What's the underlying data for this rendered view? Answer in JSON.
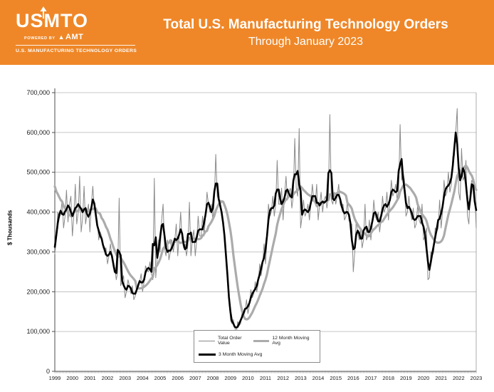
{
  "header": {
    "background_color": "#EF8728",
    "logo": {
      "name": "USMTO",
      "powered_by": "POWERED BY",
      "amt": "AMT",
      "tagline": "U.S. MANUFACTURING TECHNOLOGY ORDERS"
    },
    "title": "Total U.S. Manufacturing Technology Orders",
    "subtitle": "Through January 2023"
  },
  "chart_data": {
    "type": "line",
    "title": "Total U.S. Manufacturing Technology Orders",
    "subtitle": "Through January 2023",
    "ylabel": "$ Thousands",
    "values_unit": "$ thousands, monthly, Jan 1999 - Jan 2023",
    "ylim": [
      0,
      700000
    ],
    "ytick_step": 100000,
    "grid": "horizontal",
    "legend_position": "bottom-center-inside",
    "year_labels": [
      "1999",
      "2000",
      "2001",
      "2002",
      "2003",
      "2004",
      "2005",
      "2006",
      "2007",
      "2008",
      "2009",
      "2010",
      "2011",
      "2012",
      "2013",
      "2014",
      "2015",
      "2016",
      "2017",
      "2018",
      "2019",
      "2020",
      "2021",
      "2022",
      "2023"
    ],
    "series": [
      {
        "name": "Total Order Value",
        "color": "#8a8a8a",
        "width": 1,
        "role": "monthly-values",
        "values": [
          295000,
          330000,
          400000,
          385000,
          395000,
          430000,
          360000,
          390000,
          455000,
          375000,
          420000,
          440000,
          340000,
          390000,
          470000,
          370000,
          400000,
          490000,
          350000,
          385000,
          465000,
          370000,
          395000,
          420000,
          350000,
          420000,
          465000,
          410000,
          390000,
          380000,
          330000,
          350000,
          340000,
          310000,
          300000,
          310000,
          270000,
          290000,
          320000,
          290000,
          260000,
          260000,
          230000,
          250000,
          435000,
          215000,
          225000,
          240000,
          185000,
          200000,
          230000,
          215000,
          195000,
          215000,
          180000,
          190000,
          215000,
          210000,
          225000,
          245000,
          200000,
          225000,
          265000,
          255000,
          250000,
          275000,
          245000,
          230000,
          485000,
          235000,
          290000,
          330000,
          300000,
          380000,
          420000,
          310000,
          290000,
          330000,
          280000,
          300000,
          330000,
          300000,
          330000,
          370000,
          290000,
          340000,
          400000,
          330000,
          310000,
          320000,
          290000,
          320000,
          425000,
          290000,
          330000,
          355000,
          290000,
          330000,
          390000,
          340000,
          340000,
          390000,
          340000,
          390000,
          450000,
          420000,
          400000,
          420000,
          380000,
          430000,
          545000,
          440000,
          430000,
          430000,
          390000,
          380000,
          350000,
          290000,
          230000,
          200000,
          130000,
          120000,
          130000,
          110000,
          95000,
          125000,
          115000,
          120000,
          150000,
          140000,
          150000,
          180000,
          145000,
          165000,
          205000,
          185000,
          195000,
          225000,
          200000,
          220000,
          270000,
          240000,
          265000,
          320000,
          270000,
          330000,
          420000,
          390000,
          400000,
          440000,
          390000,
          420000,
          530000,
          420000,
          420000,
          460000,
          380000,
          440000,
          490000,
          430000,
          450000,
          460000,
          410000,
          440000,
          585000,
          460000,
          440000,
          610000,
          360000,
          390000,
          430000,
          390000,
          400000,
          420000,
          380000,
          420000,
          470000,
          430000,
          420000,
          470000,
          380000,
          420000,
          450000,
          400000,
          430000,
          440000,
          410000,
          440000,
          645000,
          430000,
          420000,
          450000,
          420000,
          440000,
          470000,
          420000,
          410000,
          420000,
          380000,
          390000,
          430000,
          380000,
          370000,
          370000,
          250000,
          300000,
          380000,
          350000,
          330000,
          360000,
          310000,
          330000,
          420000,
          330000,
          340000,
          380000,
          330000,
          370000,
          430000,
          390000,
          380000,
          400000,
          350000,
          380000,
          440000,
          400000,
          410000,
          450000,
          380000,
          430000,
          480000,
          440000,
          450000,
          470000,
          430000,
          460000,
          620000,
          480000,
          500000,
          480000,
          390000,
          400000,
          440000,
          400000,
          380000,
          410000,
          360000,
          370000,
          420000,
          380000,
          370000,
          420000,
          330000,
          340000,
          360000,
          230000,
          235000,
          300000,
          290000,
          300000,
          360000,
          350000,
          360000,
          430000,
          360000,
          400000,
          480000,
          440000,
          450000,
          500000,
          450000,
          470000,
          540000,
          540000,
          600000,
          660000,
          450000,
          430000,
          560000,
          480000,
          490000,
          530000,
          390000,
          370000,
          460000,
          480000,
          470000,
          450000,
          360000
        ]
      },
      {
        "name": "12 Month Moving Avg",
        "color": "#ababab",
        "width": 3.2,
        "role": "ma12-derived",
        "ma_seed_pre_1999": 480000
      },
      {
        "name": "3 Month Moving Avg",
        "color": "#000000",
        "width": 2.6,
        "role": "ma3-derived"
      }
    ]
  }
}
